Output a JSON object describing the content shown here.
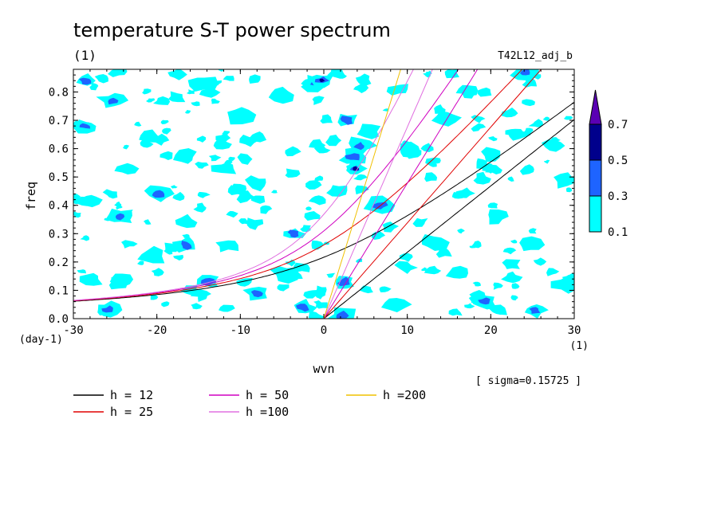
{
  "chart_data": {
    "type": "contour",
    "title": "temperature S-T power spectrum",
    "units_label": "(1)",
    "run_label": "T42L12_adj_b",
    "xlabel": "wvn",
    "ylabel": "freq",
    "x_units": "(1)",
    "y_units": "(day-1)",
    "xlim": [
      -30,
      30
    ],
    "ylim": [
      0,
      0.88
    ],
    "x_ticks": [
      -30,
      -20,
      -10,
      0,
      10,
      20,
      30
    ],
    "x_tick_labels": [
      "-30",
      "-20",
      "-10",
      "0",
      "10",
      "20",
      "30"
    ],
    "y_ticks": [
      0,
      0.1,
      0.2,
      0.3,
      0.4,
      0.5,
      0.6,
      0.7,
      0.8
    ],
    "y_tick_labels": [
      "0.0",
      "0.1",
      "0.2",
      "0.3",
      "0.4",
      "0.5",
      "0.6",
      "0.7",
      "0.8"
    ],
    "sigma_note": "[ sigma=0.15725 ]",
    "colorbar": {
      "levels": [
        0.1,
        0.3,
        0.5,
        0.7
      ],
      "level_labels": [
        "0.1",
        "0.3",
        "0.5",
        "0.7"
      ],
      "colors": [
        "#00ffff",
        "#1e64ff",
        "#00008c",
        "#5a00b4"
      ]
    },
    "contour_patches": [
      {
        "x": -28.5,
        "y": 0.84,
        "level": 1
      },
      {
        "x": -25.3,
        "y": 0.77,
        "level": 1
      },
      {
        "x": -28.6,
        "y": 0.68,
        "level": 1
      },
      {
        "x": -20.8,
        "y": 0.64,
        "level": 0
      },
      {
        "x": -14.5,
        "y": 0.83,
        "level": 0
      },
      {
        "x": -10.1,
        "y": 0.72,
        "level": 0
      },
      {
        "x": -5.2,
        "y": 0.79,
        "level": 0
      },
      {
        "x": -1.0,
        "y": 0.83,
        "level": 1
      },
      {
        "x": -0.2,
        "y": 0.84,
        "level": 2
      },
      {
        "x": -19.8,
        "y": 0.44,
        "level": 1
      },
      {
        "x": -16.5,
        "y": 0.57,
        "level": 0
      },
      {
        "x": -23.7,
        "y": 0.53,
        "level": 0
      },
      {
        "x": -28.0,
        "y": 0.42,
        "level": 0
      },
      {
        "x": -24.5,
        "y": 0.36,
        "level": 1
      },
      {
        "x": -11.8,
        "y": 0.53,
        "level": 0
      },
      {
        "x": -16.6,
        "y": 0.34,
        "level": 0
      },
      {
        "x": -11.6,
        "y": 0.26,
        "level": 0
      },
      {
        "x": -20.7,
        "y": 0.22,
        "level": 0
      },
      {
        "x": -16.5,
        "y": 0.26,
        "level": 1
      },
      {
        "x": -3.6,
        "y": 0.3,
        "level": 1
      },
      {
        "x": 3.5,
        "y": 0.57,
        "level": 1
      },
      {
        "x": 3.8,
        "y": 0.53,
        "level": 2
      },
      {
        "x": 4.3,
        "y": 0.61,
        "level": 1
      },
      {
        "x": 6.7,
        "y": 0.4,
        "level": 1
      },
      {
        "x": 2.7,
        "y": 0.7,
        "level": 1
      },
      {
        "x": 5.5,
        "y": 0.66,
        "level": 0
      },
      {
        "x": 8.9,
        "y": 0.81,
        "level": 0
      },
      {
        "x": 14.6,
        "y": 0.71,
        "level": 0
      },
      {
        "x": 17.5,
        "y": 0.8,
        "level": 0
      },
      {
        "x": 24.1,
        "y": 0.87,
        "level": 1
      },
      {
        "x": 27.6,
        "y": 0.61,
        "level": 0
      },
      {
        "x": 29.0,
        "y": 0.49,
        "level": 0
      },
      {
        "x": 20.7,
        "y": 0.36,
        "level": 0
      },
      {
        "x": 24.6,
        "y": 0.26,
        "level": 0
      },
      {
        "x": 13.0,
        "y": 0.27,
        "level": 0
      },
      {
        "x": 9.8,
        "y": 0.18,
        "level": 0
      },
      {
        "x": 2.5,
        "y": 0.13,
        "level": 1
      },
      {
        "x": -8.0,
        "y": 0.09,
        "level": 1
      },
      {
        "x": -13.8,
        "y": 0.13,
        "level": 1
      },
      {
        "x": -25.8,
        "y": 0.03,
        "level": 1
      },
      {
        "x": -2.4,
        "y": 0.04,
        "level": 1
      },
      {
        "x": 2.2,
        "y": 0.01,
        "level": 1
      },
      {
        "x": 19.3,
        "y": 0.06,
        "level": 1
      },
      {
        "x": 25.3,
        "y": 0.03,
        "level": 1
      },
      {
        "x": 16.1,
        "y": 0.16,
        "level": 0
      },
      {
        "x": -4.6,
        "y": 0.16,
        "level": 0
      },
      {
        "x": 8.5,
        "y": 0.05,
        "level": 0
      },
      {
        "x": 29.0,
        "y": 0.12,
        "level": 0
      },
      {
        "x": -27.8,
        "y": 0.14,
        "level": 0
      },
      {
        "x": -7.9,
        "y": 0.48,
        "level": 0
      },
      {
        "x": 10.1,
        "y": 0.59,
        "level": 0
      },
      {
        "x": 20.3,
        "y": 0.58,
        "level": 0
      }
    ],
    "series": [
      {
        "name": "h = 12",
        "color": "#000000",
        "h": 12,
        "curves": [
          "mrg",
          "kelvin"
        ]
      },
      {
        "name": "h = 25",
        "color": "#e00000",
        "h": 25,
        "curves": [
          "mrg",
          "kelvin"
        ]
      },
      {
        "name": "h = 50",
        "color": "#d000c0",
        "h": 50,
        "curves": [
          "mrg",
          "kelvin"
        ]
      },
      {
        "name": "h =100",
        "color": "#e070e0",
        "h": 100,
        "curves": [
          "mrg",
          "kelvin"
        ]
      },
      {
        "name": "h =200",
        "color": "#f0c000",
        "h": 200,
        "curves": [
          "kelvin"
        ]
      }
    ]
  }
}
